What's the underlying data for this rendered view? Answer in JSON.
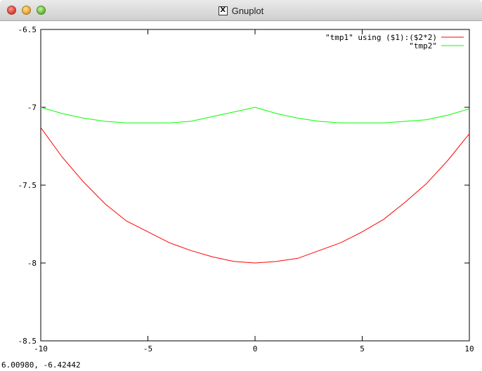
{
  "window": {
    "title": "Gnuplot",
    "title_icon": "x11-icon",
    "status_coordinates": "6.00980, -6.42442"
  },
  "chart_data": {
    "type": "line",
    "title": "",
    "xlabel": "",
    "ylabel": "",
    "xlim": [
      -10,
      10
    ],
    "ylim": [
      -8.5,
      -6.5
    ],
    "grid": false,
    "legend_position": "top-right",
    "x_ticks": [
      "-10",
      "-5",
      "0",
      "5",
      "10"
    ],
    "y_ticks": [
      "-6.5",
      "-7",
      "-7.5",
      "-8",
      "-8.5"
    ],
    "series": [
      {
        "name": "\"tmp1\" using ($1):($2*2)",
        "color": "#ff0000",
        "x": [
          -10,
          -9,
          -8,
          -7,
          -6,
          -5,
          -4,
          -3,
          -2,
          -1,
          0,
          1,
          2,
          3,
          4,
          5,
          6,
          7,
          8,
          9,
          10
        ],
        "y": [
          -7.13,
          -7.32,
          -7.48,
          -7.62,
          -7.73,
          -7.8,
          -7.87,
          -7.92,
          -7.96,
          -7.99,
          -8.0,
          -7.99,
          -7.97,
          -7.92,
          -7.87,
          -7.8,
          -7.72,
          -7.61,
          -7.49,
          -7.34,
          -7.17
        ]
      },
      {
        "name": "\"tmp2\"",
        "color": "#00ff00",
        "x": [
          -10,
          -9,
          -8,
          -7,
          -6,
          -5,
          -4,
          -3,
          -2,
          -1,
          0,
          1,
          2,
          3,
          4,
          5,
          6,
          7,
          8,
          9,
          10
        ],
        "y": [
          -7.0,
          -7.04,
          -7.07,
          -7.09,
          -7.1,
          -7.1,
          -7.1,
          -7.09,
          -7.06,
          -7.03,
          -7.0,
          -7.04,
          -7.07,
          -7.09,
          -7.1,
          -7.1,
          -7.1,
          -7.09,
          -7.08,
          -7.05,
          -7.01
        ]
      }
    ]
  }
}
